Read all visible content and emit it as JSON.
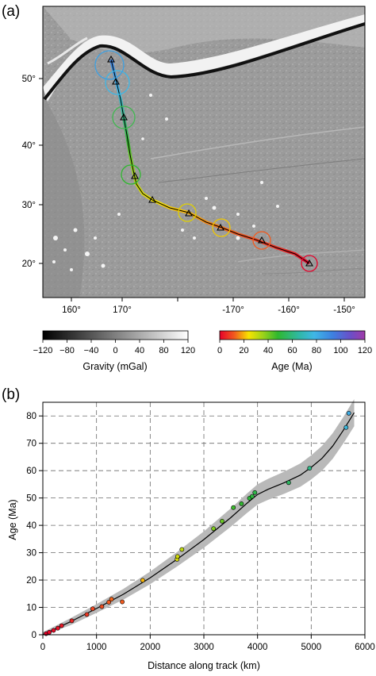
{
  "panel_a": {
    "label": "(a)",
    "x_ticks": [
      "160°",
      "170°",
      "-170°",
      "-160°",
      "-150°"
    ],
    "y_ticks": [
      "20°",
      "30°",
      "40°",
      "50°"
    ],
    "gravity_colorbar": {
      "ticks": [
        "−120",
        "−80",
        "−40",
        "0",
        "40",
        "80",
        "120"
      ],
      "label": "Gravity (mGal)"
    },
    "age_colorbar": {
      "ticks": [
        "0",
        "20",
        "40",
        "60",
        "80",
        "100",
        "120"
      ],
      "label": "Age (Ma)"
    }
  },
  "chart_data": [
    {
      "type": "scatter",
      "panel": "(b)",
      "xlabel": "Distance along track (km)",
      "ylabel": "Age (Ma)",
      "xlim": [
        0,
        6000
      ],
      "ylim": [
        0,
        85
      ],
      "x_ticks": [
        0,
        1000,
        2000,
        3000,
        4000,
        5000,
        6000
      ],
      "y_ticks": [
        0,
        10,
        20,
        30,
        40,
        50,
        60,
        70,
        80
      ],
      "grid": true,
      "points": [
        {
          "x": 60,
          "y": 0.4
        },
        {
          "x": 120,
          "y": 0.9
        },
        {
          "x": 200,
          "y": 1.6
        },
        {
          "x": 280,
          "y": 2.4
        },
        {
          "x": 350,
          "y": 3.3
        },
        {
          "x": 540,
          "y": 5.1
        },
        {
          "x": 820,
          "y": 7.4
        },
        {
          "x": 930,
          "y": 9.5
        },
        {
          "x": 1100,
          "y": 10.3
        },
        {
          "x": 1230,
          "y": 11.9
        },
        {
          "x": 1280,
          "y": 13.0
        },
        {
          "x": 1480,
          "y": 12.0
        },
        {
          "x": 1860,
          "y": 19.9
        },
        {
          "x": 2500,
          "y": 27.6
        },
        {
          "x": 2510,
          "y": 28.6
        },
        {
          "x": 2590,
          "y": 31.2
        },
        {
          "x": 3180,
          "y": 38.8
        },
        {
          "x": 3340,
          "y": 41.5
        },
        {
          "x": 3550,
          "y": 46.5
        },
        {
          "x": 3700,
          "y": 47.9
        },
        {
          "x": 3850,
          "y": 49.9
        },
        {
          "x": 3900,
          "y": 50.6
        },
        {
          "x": 3950,
          "y": 52.0
        },
        {
          "x": 4580,
          "y": 55.6
        },
        {
          "x": 4970,
          "y": 60.9
        },
        {
          "x": 5650,
          "y": 75.8
        },
        {
          "x": 5700,
          "y": 81.0
        }
      ],
      "curve": [
        [
          0,
          0
        ],
        [
          500,
          4.6
        ],
        [
          1000,
          9.6
        ],
        [
          1500,
          14.8
        ],
        [
          2000,
          20.8
        ],
        [
          2500,
          27.6
        ],
        [
          3000,
          34.8
        ],
        [
          3500,
          42.8
        ],
        [
          3800,
          48.0
        ],
        [
          4000,
          51.3
        ],
        [
          4200,
          53.2
        ],
        [
          4500,
          55.6
        ],
        [
          4800,
          58.4
        ],
        [
          5000,
          61.2
        ],
        [
          5200,
          64.5
        ],
        [
          5400,
          69.0
        ],
        [
          5600,
          74.8
        ],
        [
          5800,
          81.2
        ]
      ]
    }
  ],
  "panel_b": {
    "label": "(b)",
    "x_tick_labels": [
      "0",
      "1000",
      "2000",
      "3000",
      "4000",
      "5000",
      "6000"
    ],
    "y_tick_labels": [
      "0",
      "10",
      "20",
      "30",
      "40",
      "50",
      "60",
      "70",
      "80"
    ],
    "xlabel": "Distance along track (km)",
    "ylabel": "Age (Ma)"
  }
}
